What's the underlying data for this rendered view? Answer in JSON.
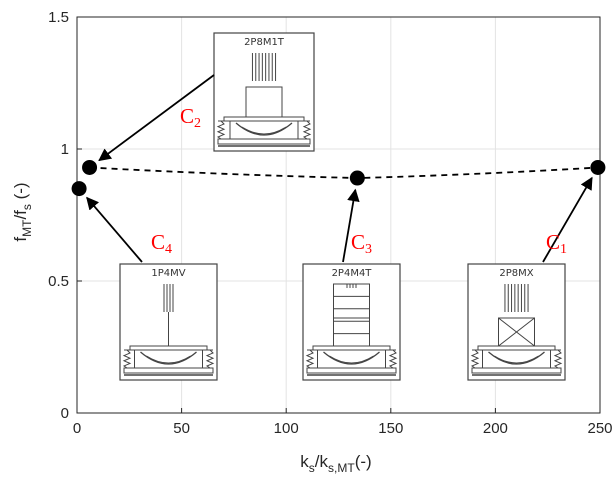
{
  "colors": {
    "grid": "#e3e3e3",
    "axis": "#262626",
    "marker": "#000000",
    "arrow": "#000000",
    "annotation": "#ff0000",
    "inset_stroke": "#444444",
    "inset_fill": "#ffffff"
  },
  "chart_data": {
    "type": "scatter",
    "title": "",
    "xlabel": {
      "main": "k",
      "sub1": "s",
      "mid": "/k",
      "sub2": "s,MT",
      "tail": "(-)"
    },
    "ylabel": {
      "main": "f",
      "sub1": "MT",
      "mid": "/f",
      "sub2": "s",
      "tail": " (-)"
    },
    "xlim": [
      0,
      250
    ],
    "ylim": [
      0,
      1.5
    ],
    "xticks": [
      0,
      50,
      100,
      150,
      200,
      250
    ],
    "yticks": [
      0,
      0.5,
      1,
      1.5
    ],
    "xtick_labels": [
      "0",
      "50",
      "100",
      "150",
      "200",
      "250"
    ],
    "ytick_labels": [
      "0",
      "0.5",
      "1",
      "1.5"
    ],
    "grid": true,
    "points": [
      {
        "id": "C4",
        "x": 1,
        "y": 0.85
      },
      {
        "id": "C2",
        "x": 6,
        "y": 0.93
      },
      {
        "id": "C3",
        "x": 134,
        "y": 0.89
      },
      {
        "id": "C1",
        "x": 249,
        "y": 0.93
      }
    ],
    "dashed_connection": [
      "C2",
      "C3",
      "C1"
    ],
    "annotations": [
      {
        "id": "C1",
        "letter": "C",
        "number": "1",
        "inset": "2P8MX",
        "type": "x"
      },
      {
        "id": "C2",
        "letter": "C",
        "number": "2",
        "inset": "2P8M1T",
        "type": "t"
      },
      {
        "id": "C3",
        "letter": "C",
        "number": "3",
        "inset": "2P4M4T",
        "type": "stack"
      },
      {
        "id": "C4",
        "letter": "C",
        "number": "4",
        "inset": "1P4MV",
        "type": "v"
      }
    ]
  }
}
